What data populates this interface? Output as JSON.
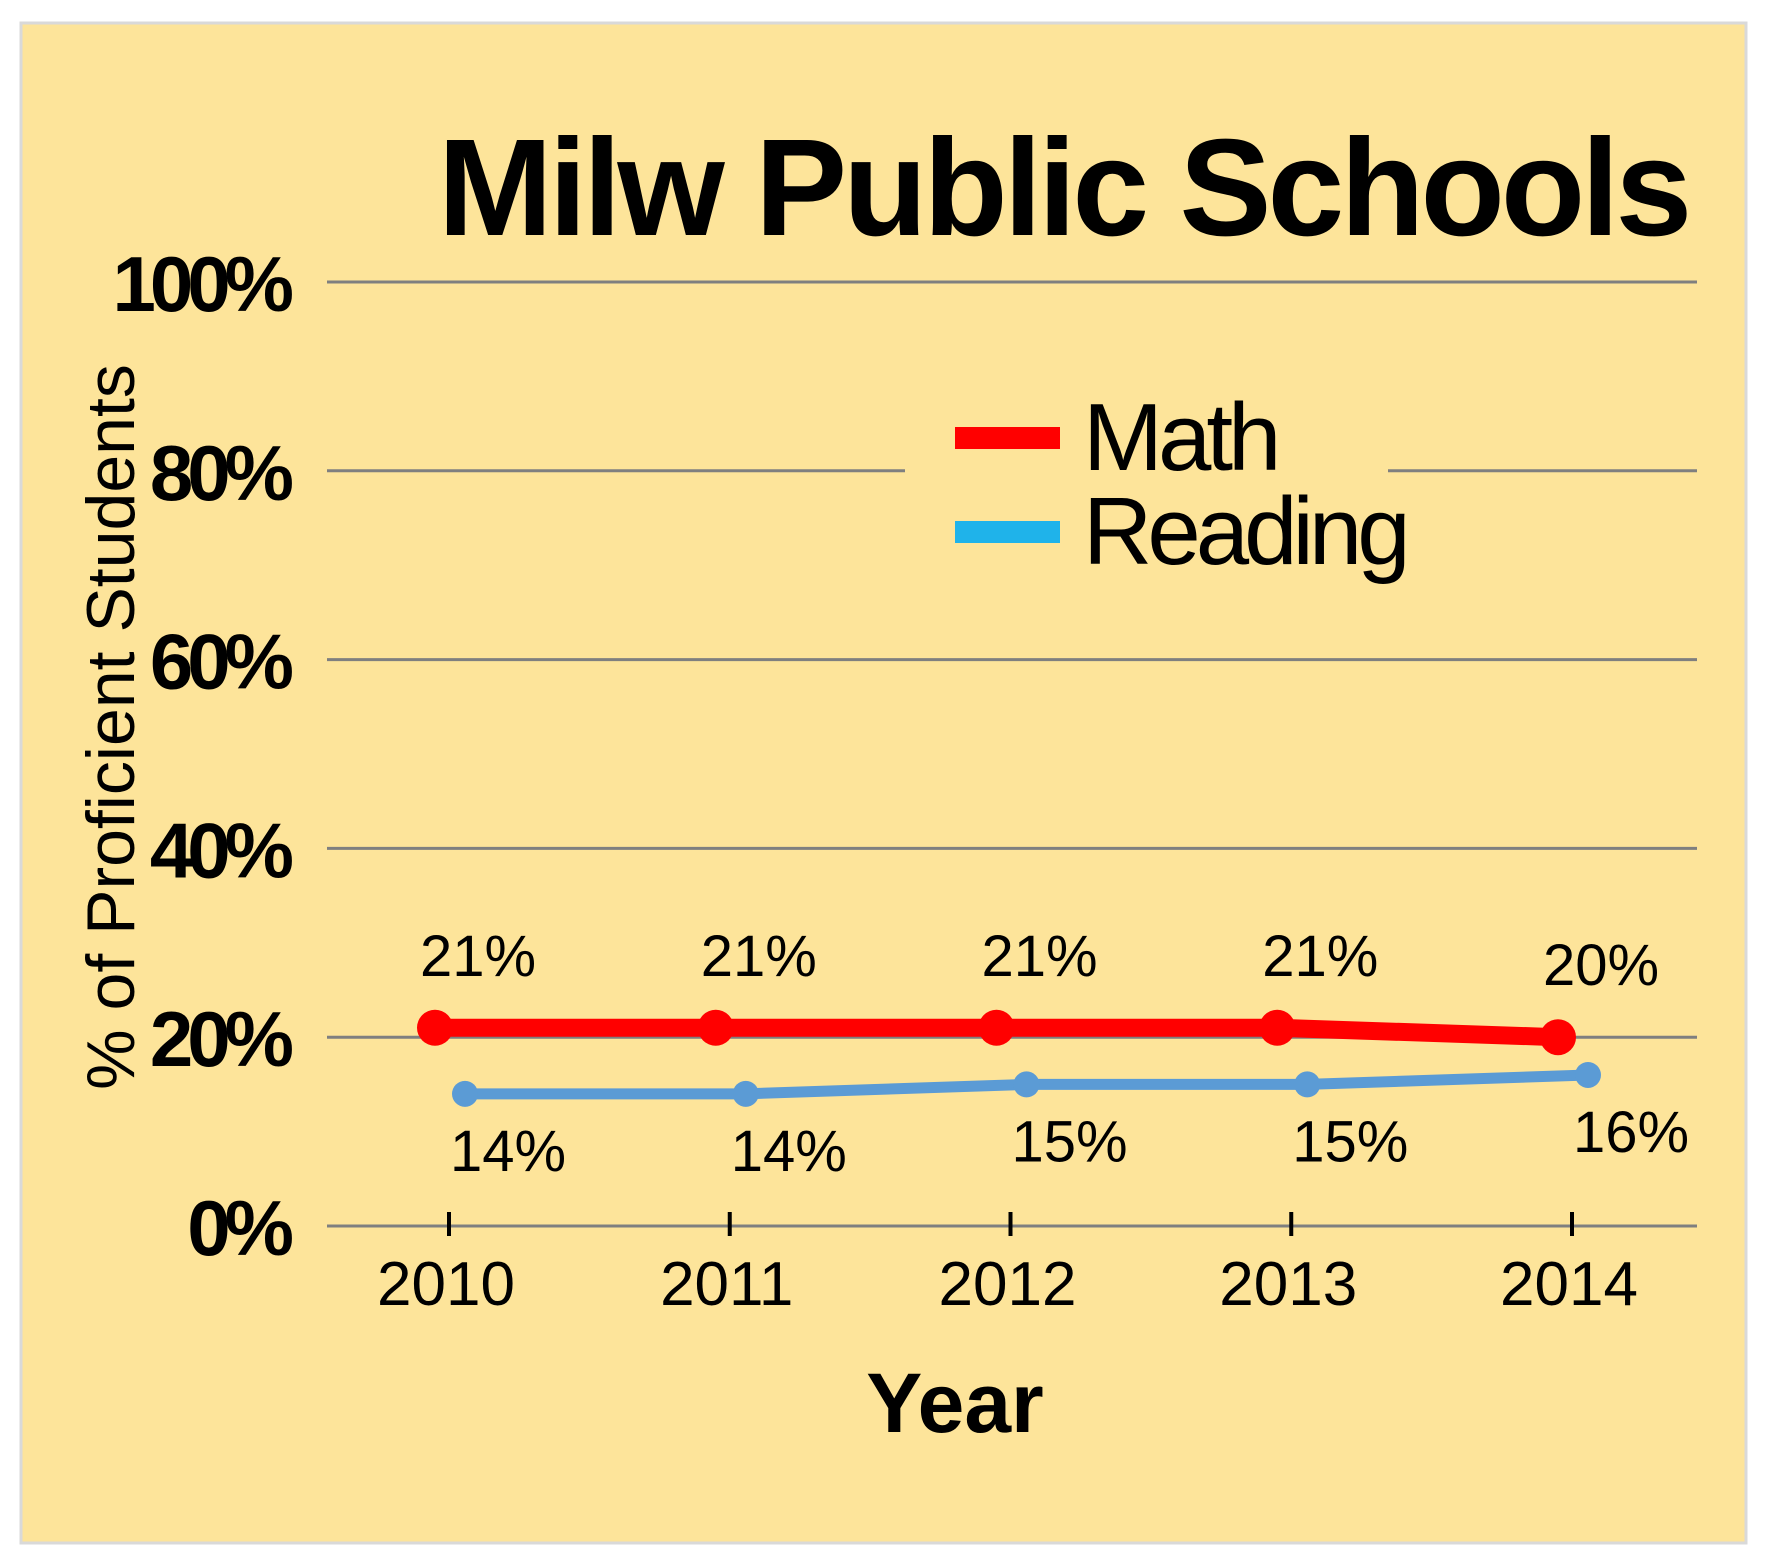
{
  "chart_data": {
    "type": "line",
    "title": "Milw Public Schools",
    "xlabel": "Year",
    "ylabel": "% of Proficient Students",
    "categories": [
      "2010",
      "2011",
      "2012",
      "2013",
      "2014"
    ],
    "ylim": [
      0,
      100
    ],
    "yticks": [
      0,
      20,
      40,
      60,
      80,
      100
    ],
    "ytick_labels": [
      "0%",
      "20%",
      "40%",
      "60%",
      "80%",
      "100%"
    ],
    "grid": true,
    "legend_position": "upper center",
    "series": [
      {
        "name": "Math",
        "color": "#ff0000",
        "values": [
          21,
          21,
          21,
          21,
          20
        ],
        "data_labels": [
          "21%",
          "21%",
          "21%",
          "21%",
          "20%"
        ],
        "label_side": "above"
      },
      {
        "name": "Reading",
        "color": "#5b9bd5",
        "legend_color": "#1fb3ea",
        "values": [
          14,
          14,
          15,
          15,
          16
        ],
        "data_labels": [
          "14%",
          "14%",
          "15%",
          "15%",
          "16%"
        ],
        "label_side": "below"
      }
    ],
    "background_color": "#fde49a"
  }
}
